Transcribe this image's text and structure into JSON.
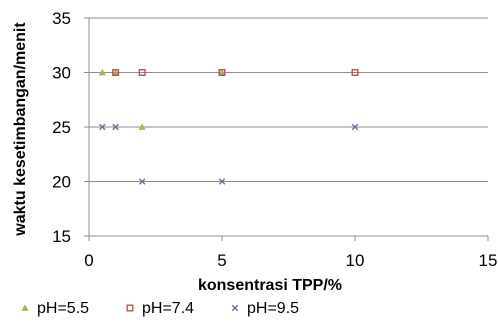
{
  "chart_data": {
    "type": "scatter",
    "title": "",
    "xlabel": "konsentrasi TPP/%",
    "ylabel": "waktu kesetimbangan/menit",
    "xlim": [
      0,
      15
    ],
    "ylim": [
      15,
      35
    ],
    "x_ticks": [
      0,
      5,
      10,
      15
    ],
    "y_ticks": [
      15,
      20,
      25,
      30,
      35
    ],
    "grid": "horizontal",
    "legend_position": "bottom",
    "series": [
      {
        "name": "pH=5.5",
        "marker": "triangle",
        "color": "#9bbb59",
        "points": [
          [
            0.5,
            30
          ],
          [
            1,
            30
          ],
          [
            2,
            25
          ],
          [
            5,
            30
          ]
        ]
      },
      {
        "name": "pH=7.4",
        "marker": "square",
        "color": "#c0504d",
        "points": [
          [
            1,
            30
          ],
          [
            2,
            30
          ],
          [
            5,
            30
          ],
          [
            10,
            30
          ]
        ]
      },
      {
        "name": "pH=9.5",
        "marker": "x",
        "color": "#8064a2",
        "points": [
          [
            0.5,
            25
          ],
          [
            1,
            25
          ],
          [
            2,
            20
          ],
          [
            5,
            20
          ],
          [
            10,
            25
          ]
        ]
      }
    ]
  }
}
